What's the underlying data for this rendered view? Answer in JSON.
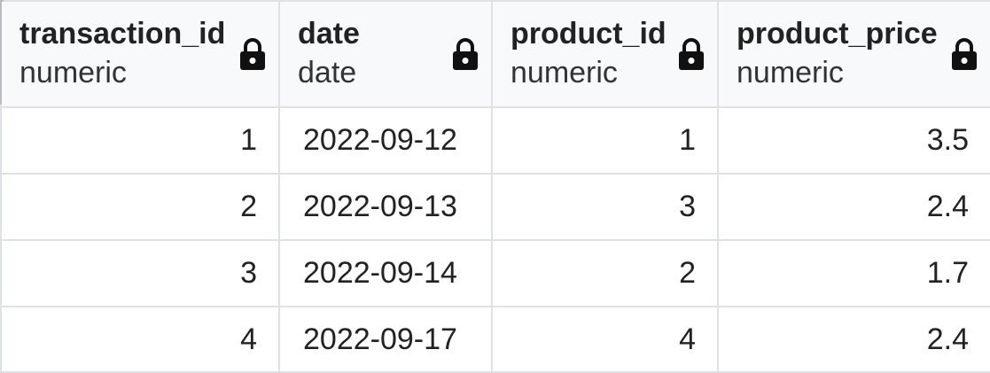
{
  "table": {
    "columns": [
      {
        "name": "transaction_id",
        "type": "numeric",
        "icon": "lock-icon"
      },
      {
        "name": "date",
        "type": "date",
        "icon": "lock-icon"
      },
      {
        "name": "product_id",
        "type": "numeric",
        "icon": "lock-icon"
      },
      {
        "name": "product_price",
        "type": "numeric",
        "icon": "lock-icon"
      }
    ],
    "rows": [
      [
        "1",
        "2022-09-12",
        "1",
        "3.5"
      ],
      [
        "2",
        "2022-09-13",
        "3",
        "2.4"
      ],
      [
        "3",
        "2022-09-14",
        "2",
        "1.7"
      ],
      [
        "4",
        "2022-09-17",
        "4",
        "2.4"
      ]
    ]
  },
  "colors": {
    "header_bg": "#f8f9fa",
    "grid_line": "#dee2e6",
    "text": "#222222"
  }
}
